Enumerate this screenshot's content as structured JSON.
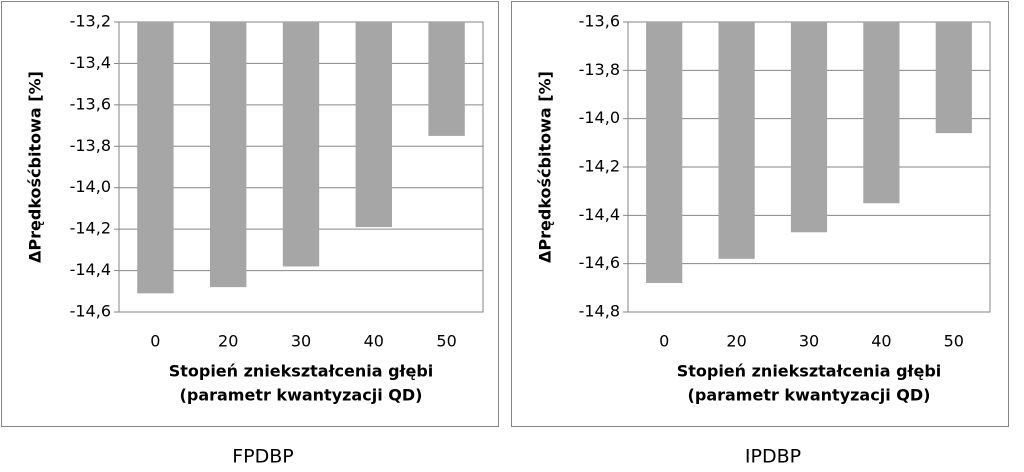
{
  "chart_data": [
    {
      "type": "bar",
      "caption": "FPDBP",
      "ylabel": "ΔPrędkośćbitowa [%]",
      "xlabel": [
        "Stopień zniekształcenia głębi",
        "(parametr kwantyzacji QD)"
      ],
      "categories": [
        "0",
        "20",
        "30",
        "40",
        "50"
      ],
      "values": [
        -14.51,
        -14.48,
        -14.38,
        -14.19,
        -13.75
      ],
      "color": "#a6a6a6",
      "ylim": [
        -14.6,
        -13.2
      ],
      "yticks": [
        {
          "value": -13.2,
          "label": "-13,2"
        },
        {
          "value": -13.4,
          "label": "-13,4"
        },
        {
          "value": -13.6,
          "label": "-13,6"
        },
        {
          "value": -13.8,
          "label": "-13,8"
        },
        {
          "value": -14.0,
          "label": "-14,0"
        },
        {
          "value": -14.2,
          "label": "-14,2"
        },
        {
          "value": -14.4,
          "label": "-14,4"
        },
        {
          "value": -14.6,
          "label": "-14,6"
        }
      ],
      "grid": true
    },
    {
      "type": "bar",
      "caption": "IPDBP",
      "ylabel": "ΔPrędkośćbitowa [%]",
      "xlabel": [
        "Stopień zniekształcenia głębi",
        "(parametr kwantyzacji QD)"
      ],
      "categories": [
        "0",
        "20",
        "30",
        "40",
        "50"
      ],
      "values": [
        -14.68,
        -14.58,
        -14.47,
        -14.35,
        -14.06
      ],
      "color": "#a6a6a6",
      "ylim": [
        -14.8,
        -13.6
      ],
      "yticks": [
        {
          "value": -13.6,
          "label": "-13,6"
        },
        {
          "value": -13.8,
          "label": "-13,8"
        },
        {
          "value": -14.0,
          "label": "-14,0"
        },
        {
          "value": -14.2,
          "label": "-14,2"
        },
        {
          "value": -14.4,
          "label": "-14,4"
        },
        {
          "value": -14.6,
          "label": "-14,6"
        },
        {
          "value": -14.8,
          "label": "-14,8"
        }
      ],
      "grid": true
    }
  ]
}
